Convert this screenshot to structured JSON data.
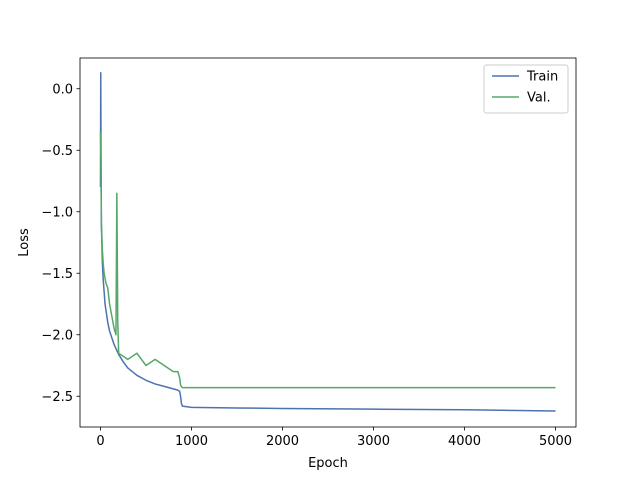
{
  "chart_data": {
    "type": "line",
    "title": "",
    "xlabel": "Epoch",
    "ylabel": "Loss",
    "xlim": [
      -225,
      5225
    ],
    "ylim": [
      -2.75,
      0.25
    ],
    "xticks": [
      0,
      1000,
      2000,
      3000,
      4000,
      5000
    ],
    "xtick_labels": [
      "0",
      "1000",
      "2000",
      "3000",
      "4000",
      "5000"
    ],
    "yticks": [
      0.0,
      -0.5,
      -1.0,
      -1.5,
      -2.0,
      -2.5
    ],
    "ytick_labels": [
      "0.0",
      "−0.5",
      "−1.0",
      "−1.5",
      "−2.0",
      "−2.5"
    ],
    "grid": false,
    "legend": "top-right",
    "series": [
      {
        "name": "Train",
        "color": "#4c72b0",
        "x": [
          0,
          3,
          6,
          10,
          20,
          30,
          50,
          80,
          100,
          150,
          200,
          250,
          300,
          400,
          500,
          600,
          700,
          800,
          850,
          870,
          880,
          890,
          900,
          1000,
          1500,
          2000,
          3000,
          4000,
          5000
        ],
        "y": [
          -0.8,
          0.13,
          -0.5,
          -1.1,
          -1.4,
          -1.55,
          -1.75,
          -1.9,
          -1.97,
          -2.08,
          -2.16,
          -2.22,
          -2.27,
          -2.33,
          -2.37,
          -2.4,
          -2.42,
          -2.44,
          -2.45,
          -2.46,
          -2.5,
          -2.56,
          -2.58,
          -2.59,
          -2.595,
          -2.6,
          -2.605,
          -2.61,
          -2.62
        ]
      },
      {
        "name": "Val.",
        "color": "#55a868",
        "x": [
          0,
          5,
          10,
          20,
          30,
          40,
          60,
          80,
          100,
          150,
          170,
          180,
          190,
          200,
          300,
          400,
          500,
          600,
          700,
          800,
          850,
          870,
          880,
          900,
          1000,
          2000,
          3000,
          4000,
          5000
        ],
        "y": [
          -0.35,
          -0.6,
          -1.1,
          -1.3,
          -1.42,
          -1.5,
          -1.58,
          -1.62,
          -1.75,
          -1.95,
          -2.0,
          -0.85,
          -1.9,
          -2.15,
          -2.2,
          -2.15,
          -2.25,
          -2.2,
          -2.25,
          -2.3,
          -2.3,
          -2.35,
          -2.41,
          -2.43,
          -2.43,
          -2.43,
          -2.43,
          -2.43,
          -2.43
        ]
      }
    ]
  }
}
